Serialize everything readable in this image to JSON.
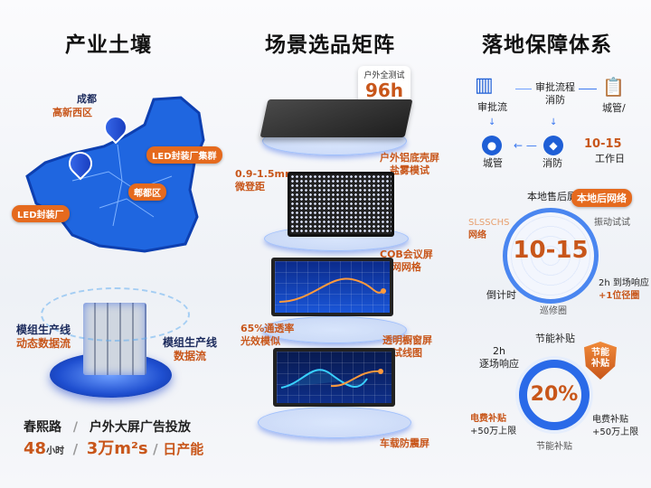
{
  "columns": {
    "industry": {
      "title": "产业土壤",
      "map": {
        "city": "成都",
        "district": "高新西区",
        "pins": [
          "LED封装厂集群",
          "郫都区",
          "LED封装厂"
        ]
      },
      "cube": {
        "left_label": [
          "模组生产线",
          "动态数据流"
        ],
        "right_label": [
          "模组生产线",
          "数据流"
        ]
      },
      "stats": {
        "row1_left": "春熙路",
        "row1_sep": "/",
        "row1_right": "户外大屏广告投放",
        "hours_value": "48",
        "hours_unit": "小时",
        "sep": "/",
        "capacity": "3万m²s",
        "capacity_suffix": "日产能"
      }
    },
    "scenarios": {
      "title": "场景选品矩阵",
      "badge": {
        "label": "户外全测试",
        "value": "96h"
      },
      "items": [
        {
          "label": [
            "户外铝底壳屏",
            "盐雾模试"
          ]
        },
        {
          "label": [
            "0.9-1.5mm",
            "微登距"
          ]
        },
        {
          "label": [
            "COB会议屏",
            "网网格"
          ]
        },
        {
          "label": [
            "65%通透率",
            "光效模似"
          ]
        },
        {
          "label": [
            "透明橱窗屏",
            "试线图"
          ]
        },
        {
          "label": [
            "车载防震屏"
          ]
        }
      ]
    },
    "assurance": {
      "title": "落地保障体系",
      "flow": {
        "node1": "审批流",
        "edge_top": [
          "审批流程",
          "消防"
        ],
        "node2": "城管/",
        "node3": "城管",
        "node4": "消防",
        "duration_value": "10-15",
        "duration_unit": "工作日"
      },
      "radar": {
        "top": "本地售后屏",
        "badge": "本地后网络",
        "right_top": "振动试试",
        "left_top": [
          "SLSSCHS",
          "网络"
        ],
        "center_value": "10-15",
        "right_bottom": [
          "2h 到场响应",
          "+1位径圈"
        ],
        "left_bottom": "倒计时",
        "bottom": "巡修圈"
      },
      "donut": {
        "top": "节能补贴",
        "shield": [
          "节能",
          "补贴"
        ],
        "left_top": [
          "2h",
          "逐场响应"
        ],
        "center_value": "20%",
        "left_bottom": [
          "电费补贴",
          "+50万上限"
        ],
        "right_bottom": [
          "电费补贴",
          "+50万上限"
        ],
        "bottom": "节能补贴"
      }
    }
  },
  "colors": {
    "accent_blue": "#1f5fd6",
    "accent_orange": "#e56a1e",
    "text_orange": "#c8561a"
  }
}
